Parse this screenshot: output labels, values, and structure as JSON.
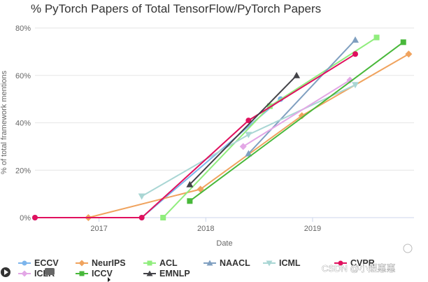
{
  "chart_data": {
    "type": "line",
    "title": "% PyTorch Papers of Total TensorFlow/PyTorch Papers",
    "xlabel": "Date",
    "ylabel": "% of total framework mentions",
    "x_ticks": [
      "2017",
      "2018",
      "2019"
    ],
    "y_ticks": [
      "0%",
      "20%",
      "40%",
      "60%",
      "80%"
    ],
    "xlim": [
      2016.4,
      2019.95
    ],
    "ylim": [
      0,
      80
    ],
    "grid": "horizontal",
    "legend_position": "bottom",
    "series": [
      {
        "name": "ECCV",
        "color": "#7cb5ec",
        "marker": "circle",
        "points": [
          [
            2016.4,
            0
          ],
          [
            2017.4,
            0
          ],
          [
            2018.7,
            50
          ]
        ]
      },
      {
        "name": "NeurIPS",
        "color": "#f0a35e",
        "marker": "diamond",
        "points": [
          [
            2016.9,
            0
          ],
          [
            2017.95,
            12
          ],
          [
            2018.9,
            43
          ],
          [
            2019.9,
            69
          ]
        ]
      },
      {
        "name": "ACL",
        "color": "#90ed7d",
        "marker": "square",
        "points": [
          [
            2017.6,
            0
          ],
          [
            2018.6,
            47
          ],
          [
            2019.6,
            76
          ]
        ]
      },
      {
        "name": "NAACL",
        "color": "#7f9fc0",
        "marker": "triangle",
        "points": [
          [
            2018.4,
            27
          ],
          [
            2019.4,
            75
          ]
        ]
      },
      {
        "name": "ICML",
        "color": "#a9d6d4",
        "marker": "triangle-down",
        "points": [
          [
            2017.4,
            9
          ],
          [
            2018.4,
            35
          ],
          [
            2019.4,
            56
          ]
        ]
      },
      {
        "name": "CVPR",
        "color": "#e0105e",
        "marker": "circle",
        "points": [
          [
            2016.4,
            0
          ],
          [
            2017.4,
            0
          ],
          [
            2018.4,
            41
          ],
          [
            2019.4,
            69
          ]
        ]
      },
      {
        "name": "ICLR",
        "color": "#e3a7e6",
        "marker": "diamond",
        "points": [
          [
            2018.35,
            30
          ],
          [
            2019.35,
            58
          ]
        ]
      },
      {
        "name": "ICCV",
        "color": "#48b83a",
        "marker": "square",
        "points": [
          [
            2017.85,
            7
          ],
          [
            2019.85,
            74
          ]
        ]
      },
      {
        "name": "EMNLP",
        "color": "#434348",
        "marker": "triangle",
        "points": [
          [
            2017.85,
            14
          ],
          [
            2018.85,
            60
          ]
        ]
      }
    ]
  },
  "legend": [
    {
      "name": "ECCV",
      "color": "#7cb5ec",
      "marker": "circle"
    },
    {
      "name": "NeurIPS",
      "color": "#f0a35e",
      "marker": "diamond"
    },
    {
      "name": "ACL",
      "color": "#90ed7d",
      "marker": "square"
    },
    {
      "name": "NAACL",
      "color": "#7f9fc0",
      "marker": "triangle"
    },
    {
      "name": "ICML",
      "color": "#a9d6d4",
      "marker": "triangle-down"
    },
    {
      "name": "CVPR",
      "color": "#e0105e",
      "marker": "circle"
    },
    {
      "name": "ICLR",
      "color": "#e3a7e6",
      "marker": "diamond"
    },
    {
      "name": "ICCV",
      "color": "#48b83a",
      "marker": "square"
    },
    {
      "name": "EMNLP",
      "color": "#434348",
      "marker": "triangle"
    }
  ],
  "watermark": "CSDN @小煜惠惠",
  "icons": {
    "play": "play-icon",
    "video": "video-icon",
    "cursor": "cursor-icon",
    "dot": "record-dot-icon"
  }
}
